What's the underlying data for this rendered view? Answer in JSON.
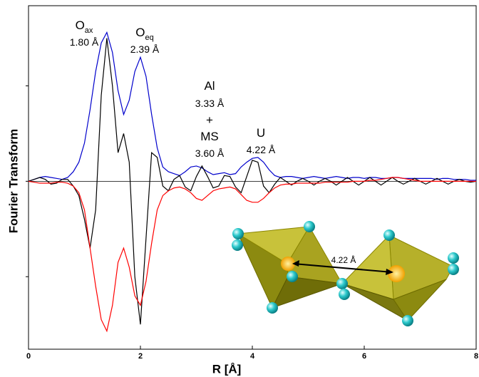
{
  "chart_data": {
    "type": "line",
    "x_label": "R [Å]",
    "y_label": "Fourier Transform",
    "xlim": [
      0,
      8
    ],
    "xticks": [
      0,
      2,
      4,
      6,
      8
    ],
    "ylim": [
      -1.76,
      1.84
    ],
    "yticks": [
      -1,
      0,
      1
    ],
    "x": [
      0,
      0.1,
      0.2,
      0.3,
      0.4,
      0.5,
      0.6,
      0.7,
      0.8,
      0.9,
      1,
      1.1,
      1.2,
      1.3,
      1.4,
      1.5,
      1.6,
      1.7,
      1.8,
      1.9,
      2,
      2.1,
      2.2,
      2.3,
      2.4,
      2.5,
      2.6,
      2.7,
      2.8,
      2.9,
      3,
      3.1,
      3.2,
      3.3,
      3.4,
      3.5,
      3.6,
      3.7,
      3.8,
      3.9,
      4,
      4.1,
      4.2,
      4.3,
      4.4,
      4.5,
      4.6,
      4.7,
      4.8,
      4.9,
      5,
      5.1,
      5.2,
      5.3,
      5.4,
      5.5,
      5.6,
      5.7,
      5.8,
      5.9,
      6,
      6.1,
      6.2,
      6.3,
      6.4,
      6.5,
      6.6,
      6.7,
      6.8,
      6.9,
      7,
      7.1,
      7.2,
      7.3,
      7.4,
      7.5,
      7.6,
      7.7,
      7.8,
      7.9,
      8
    ],
    "series": [
      {
        "color": "#0000cc",
        "values": [
          0,
          0.02,
          0.04,
          0.05,
          0.04,
          0.03,
          0.02,
          0.04,
          0.1,
          0.2,
          0.4,
          0.75,
          1.15,
          1.45,
          1.56,
          1.35,
          0.95,
          0.7,
          0.85,
          1.15,
          1.3,
          1.1,
          0.7,
          0.35,
          0.15,
          0.1,
          0.08,
          0.06,
          0.1,
          0.15,
          0.16,
          0.14,
          0.1,
          0.07,
          0.08,
          0.09,
          0.07,
          0.08,
          0.15,
          0.2,
          0.24,
          0.25,
          0.2,
          0.12,
          0.06,
          0.04,
          0.05,
          0.05,
          0.04,
          0.03,
          0.04,
          0.05,
          0.04,
          0.03,
          0.04,
          0.05,
          0.04,
          0.03,
          0.04,
          0.04,
          0.03,
          0.04,
          0.04,
          0.03,
          0.03,
          0.04,
          0.04,
          0.03,
          0.03,
          0.03,
          0.03,
          0.03,
          0.03,
          0.02,
          0.03,
          0.03,
          0.02,
          0.02,
          0.02,
          0.01,
          0.01
        ]
      },
      {
        "color": "#000000",
        "values": [
          0,
          0.02,
          0.04,
          0.02,
          -0.03,
          -0.02,
          0.02,
          0.02,
          -0.05,
          -0.15,
          -0.4,
          -0.7,
          -0.3,
          0.9,
          1.5,
          1.0,
          0.3,
          0.5,
          0.2,
          -1.0,
          -1.5,
          -0.6,
          0.3,
          0.25,
          -0.05,
          -0.1,
          0.02,
          0.06,
          -0.06,
          -0.1,
          0.05,
          0.16,
          0.05,
          -0.07,
          -0.05,
          0.06,
          0.05,
          -0.06,
          -0.12,
          0.05,
          0.22,
          0.2,
          -0.05,
          -0.12,
          -0.03,
          0.04,
          0,
          -0.04,
          0,
          0.03,
          0,
          -0.04,
          0,
          0.03,
          0,
          -0.04,
          0,
          0.04,
          0,
          -0.04,
          0,
          0.04,
          0,
          -0.04,
          0,
          0.04,
          0,
          -0.03,
          0,
          0.03,
          0,
          -0.03,
          0,
          0.03,
          0,
          -0.03,
          0,
          0.02,
          0,
          -0.01,
          0
        ]
      },
      {
        "color": "#ff0000",
        "values": [
          0,
          -0.01,
          -0.02,
          -0.02,
          -0.02,
          -0.01,
          -0.01,
          -0.02,
          -0.05,
          -0.12,
          -0.3,
          -0.7,
          -1.1,
          -1.45,
          -1.57,
          -1.3,
          -0.85,
          -0.7,
          -0.9,
          -1.2,
          -1.3,
          -1.05,
          -0.65,
          -0.3,
          -0.15,
          -0.1,
          -0.07,
          -0.06,
          -0.08,
          -0.12,
          -0.18,
          -0.2,
          -0.15,
          -0.1,
          -0.08,
          -0.07,
          -0.06,
          -0.08,
          -0.14,
          -0.2,
          -0.22,
          -0.22,
          -0.18,
          -0.12,
          -0.07,
          -0.04,
          -0.03,
          -0.03,
          -0.02,
          -0.02,
          -0.02,
          -0.02,
          -0.02,
          -0.01,
          -0.01,
          -0.01,
          -0.01,
          -0.01,
          0,
          0,
          0,
          0.01,
          0.01,
          0.02,
          0.03,
          0.04,
          0.04,
          0.03,
          0.02,
          0.01,
          0,
          0,
          0,
          0,
          0,
          0,
          0,
          0,
          0,
          0,
          0
        ]
      }
    ],
    "annotations": [
      {
        "text": "O",
        "sub": "ax"
      },
      {
        "text": "1.80 Å"
      },
      {
        "text": "O",
        "sub": "eq"
      },
      {
        "text": "2.39 Å"
      },
      {
        "text": "Al"
      },
      {
        "text": "3.33 Å"
      },
      {
        "text": "+"
      },
      {
        "text": "MS"
      },
      {
        "text": "3.60 Å"
      },
      {
        "text": "U"
      },
      {
        "text": "4.22 Å"
      }
    ],
    "inset_label": "4.22 Å"
  }
}
